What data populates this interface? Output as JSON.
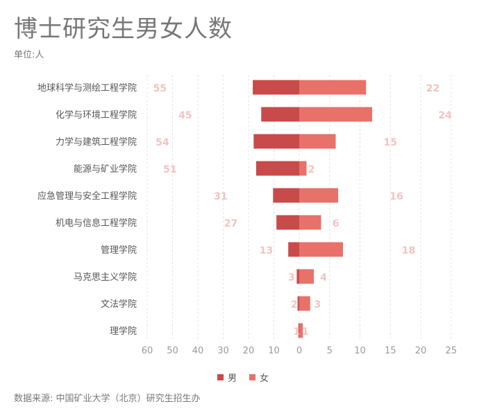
{
  "title": "博士研究生男女人数",
  "subtitle": "单位:人",
  "source": "数据来源: 中国矿业大学（北京）研究生招生办",
  "colors": {
    "male": "#c94a4a",
    "female": "#e8716a",
    "male_label": "#f3c3c0",
    "female_label": "#f3c3c0",
    "grid": "#e3e3e3",
    "axis_text": "#999999",
    "category_text": "#555555"
  },
  "chart_data": {
    "type": "bar",
    "orientation": "horizontal-diverging",
    "categories": [
      "地球科学与测绘工程学院",
      "化学与环境工程学院",
      "力学与建筑工程学院",
      "能源与矿业学院",
      "应急管理与安全工程学院",
      "机电与信息工程学院",
      "管理学院",
      "马克思主义学院",
      "文法学院",
      "理学院"
    ],
    "series": [
      {
        "name": "男",
        "values": [
          55,
          45,
          54,
          51,
          31,
          27,
          13,
          3,
          2,
          1
        ],
        "direction": "left"
      },
      {
        "name": "女",
        "values": [
          22,
          24,
          15,
          2,
          16,
          6,
          18,
          4,
          3,
          1
        ],
        "direction": "right"
      }
    ],
    "x_ticks": [
      "60",
      "50",
      "40",
      "30",
      "20",
      "10",
      "0",
      "5",
      "10",
      "15",
      "20",
      "25"
    ],
    "x_tick_values": [
      60,
      50,
      40,
      30,
      20,
      10,
      0,
      5,
      10,
      15,
      20,
      25
    ],
    "male_bar_scale": "thirds",
    "grid": true,
    "legend_position": "bottom"
  }
}
